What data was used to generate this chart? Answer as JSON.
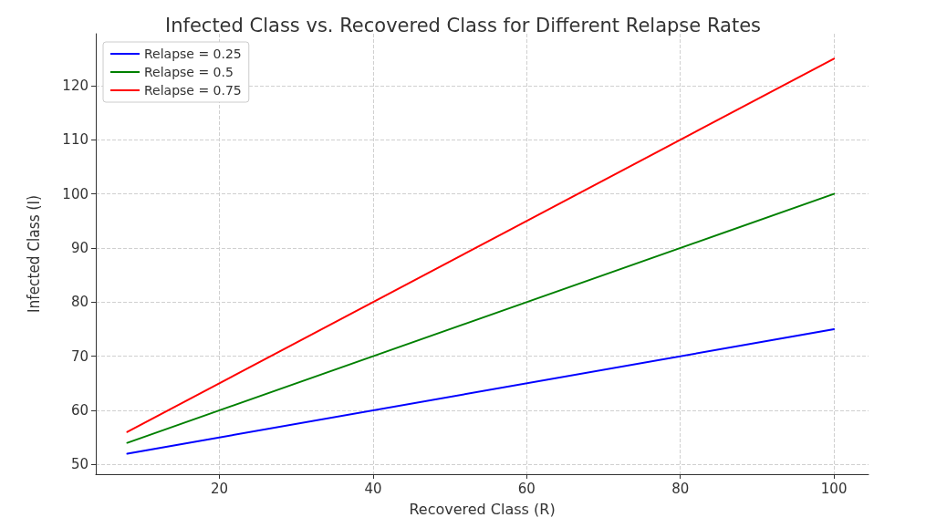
{
  "chart_data": {
    "type": "line",
    "title": "Infected Class vs. Recovered Class for Different Relapse Rates",
    "xlabel": "Recovered Class (R)",
    "ylabel": "Infected Class (I)",
    "x": [
      8,
      100
    ],
    "series": [
      {
        "name": "Relapse = 0.25",
        "color": "#0000ff",
        "values": [
          52,
          75
        ]
      },
      {
        "name": "Relapse = 0.5",
        "color": "#008000",
        "values": [
          54,
          100
        ]
      },
      {
        "name": "Relapse = 0.75",
        "color": "#ff0000",
        "values": [
          56,
          125
        ]
      }
    ],
    "xlim": [
      3.9,
      104.5
    ],
    "xticks": [
      20,
      40,
      60,
      80,
      100
    ],
    "ylim": [
      48.2,
      129.6
    ],
    "yticks": [
      50,
      60,
      70,
      80,
      90,
      100,
      110,
      120
    ],
    "grid": true,
    "legend": "top left",
    "marker": "none",
    "line_style": "solid"
  }
}
